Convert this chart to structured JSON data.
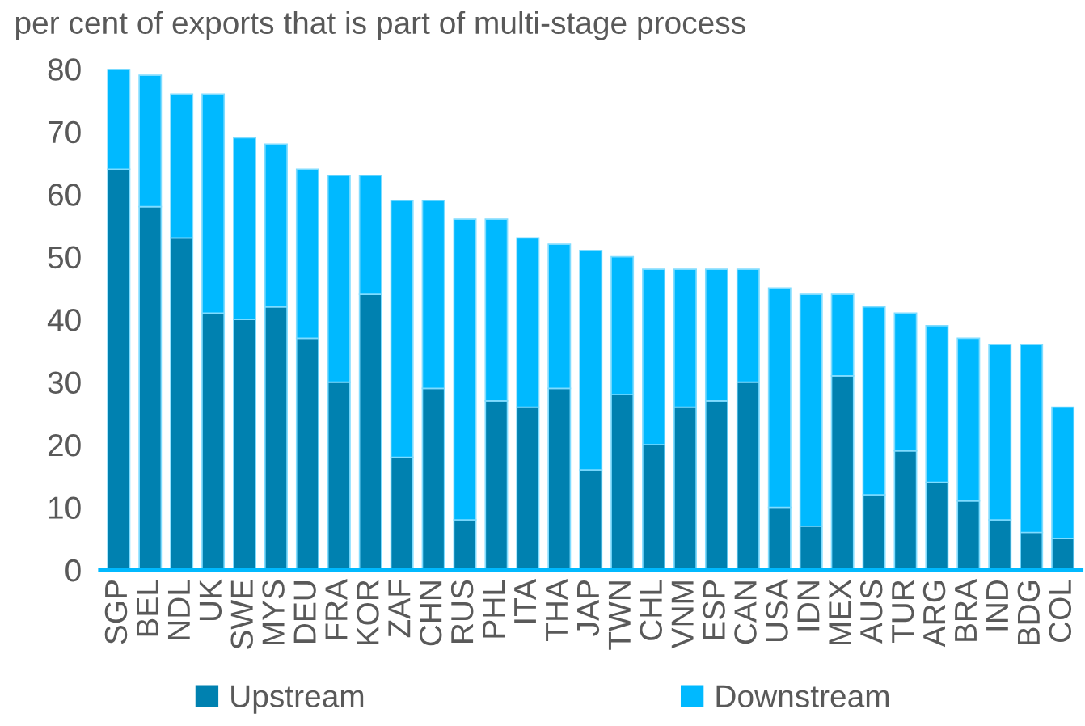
{
  "chart_data": {
    "type": "bar",
    "stacked": true,
    "title": "per cent of exports that is part of multi-stage process",
    "categories": [
      "SGP",
      "BEL",
      "NDL",
      "UK",
      "SWE",
      "MYS",
      "DEU",
      "FRA",
      "KOR",
      "ZAF",
      "CHN",
      "RUS",
      "PHL",
      "ITA",
      "THA",
      "JAP",
      "TWN",
      "CHL",
      "VNM",
      "ESP",
      "CAN",
      "USA",
      "IDN",
      "MEX",
      "AUS",
      "TUR",
      "ARG",
      "BRA",
      "IND",
      "BDG",
      "COL"
    ],
    "series": [
      {
        "name": "Upstream",
        "color": "#0081b0",
        "values": [
          64,
          58,
          53,
          41,
          40,
          42,
          37,
          30,
          44,
          18,
          29,
          8,
          27,
          26,
          29,
          16,
          28,
          20,
          26,
          27,
          30,
          10,
          7,
          31,
          12,
          19,
          14,
          11,
          8,
          6,
          5
        ]
      },
      {
        "name": "Downstream",
        "color": "#00b9ff",
        "values": [
          16,
          21,
          23,
          35,
          29,
          26,
          27,
          33,
          19,
          41,
          30,
          48,
          29,
          27,
          23,
          35,
          22,
          28,
          22,
          21,
          18,
          35,
          37,
          13,
          30,
          22,
          25,
          26,
          28,
          30,
          21
        ]
      }
    ],
    "ylim": [
      0,
      80
    ],
    "yticks": [
      0,
      10,
      20,
      30,
      40,
      50,
      60,
      70,
      80
    ],
    "grid": false,
    "legend": "bottom"
  }
}
